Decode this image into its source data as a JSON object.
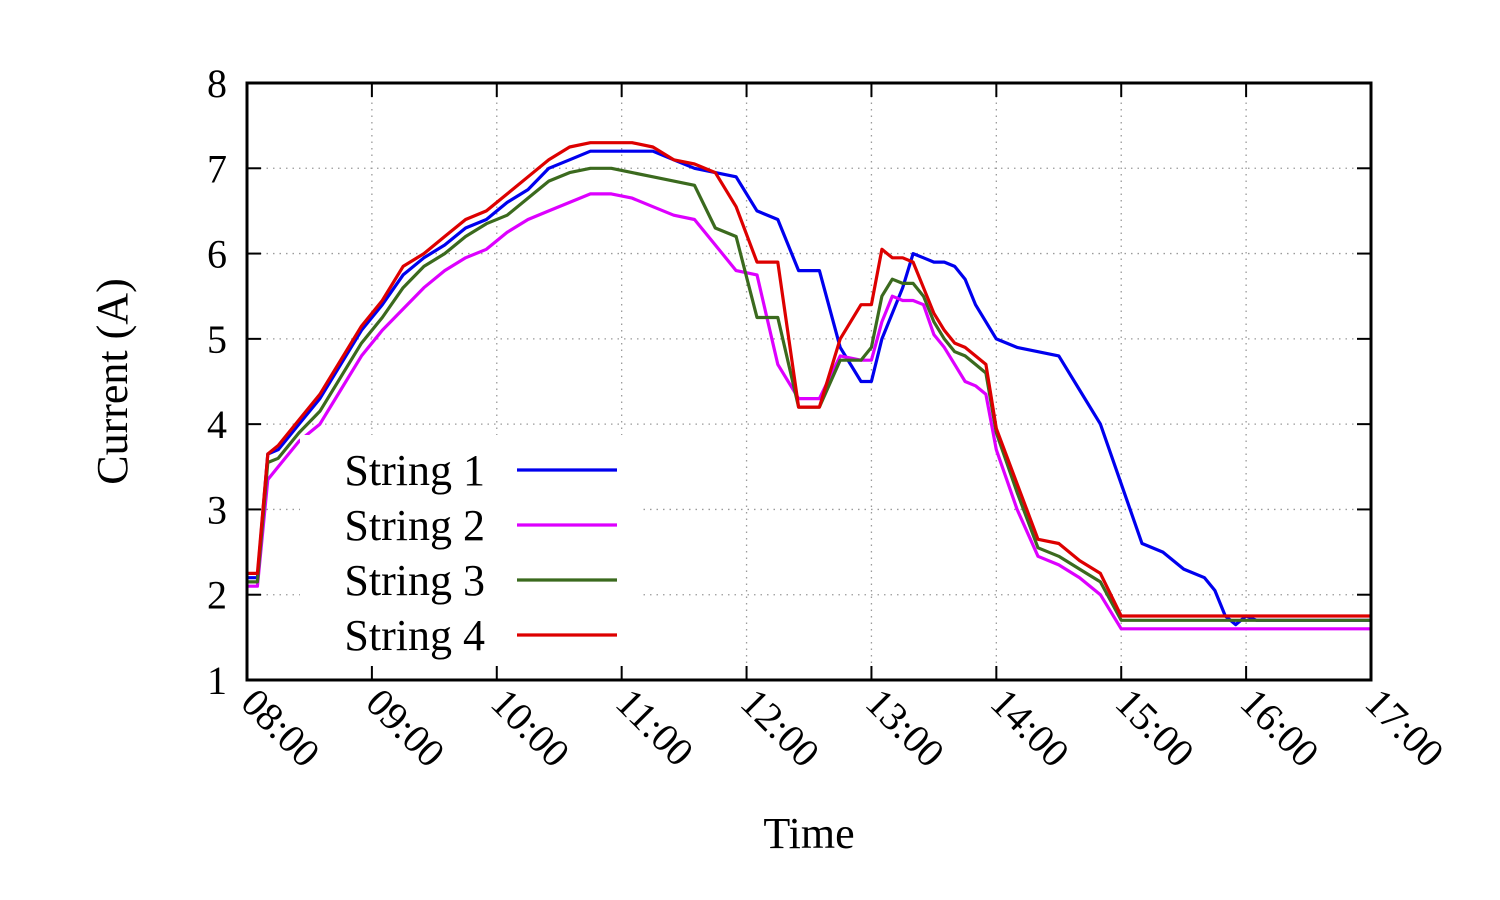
{
  "chart_data": {
    "type": "line",
    "xlabel": "Time",
    "ylabel": "Current (A)",
    "xlim": [
      "08:00",
      "17:00"
    ],
    "ylim": [
      1,
      8
    ],
    "x_ticks": [
      "08:00",
      "09:00",
      "10:00",
      "11:00",
      "12:00",
      "13:00",
      "14:00",
      "15:00",
      "16:00",
      "17:00"
    ],
    "y_ticks": [
      "1",
      "2",
      "3",
      "4",
      "5",
      "6",
      "7",
      "8"
    ],
    "grid": true,
    "legend_position": "bottom-left",
    "x": [
      "08:00",
      "08:05",
      "08:10",
      "08:15",
      "08:25",
      "08:35",
      "08:45",
      "08:55",
      "09:05",
      "09:15",
      "09:25",
      "09:35",
      "09:45",
      "09:55",
      "10:05",
      "10:15",
      "10:25",
      "10:35",
      "10:45",
      "10:55",
      "11:05",
      "11:15",
      "11:25",
      "11:35",
      "11:45",
      "11:55",
      "12:05",
      "12:15",
      "12:25",
      "12:35",
      "12:45",
      "12:55",
      "13:00",
      "13:05",
      "13:10",
      "13:15",
      "13:20",
      "13:25",
      "13:30",
      "13:35",
      "13:40",
      "13:45",
      "13:50",
      "13:55",
      "14:00",
      "14:10",
      "14:20",
      "14:30",
      "14:40",
      "14:50",
      "15:00",
      "15:10",
      "15:20",
      "15:30",
      "15:40",
      "15:45",
      "15:50",
      "15:55",
      "16:00",
      "16:05",
      "16:10",
      "16:20",
      "16:30",
      "16:40",
      "16:50",
      "16:55",
      "17:00"
    ],
    "series": [
      {
        "name": "String 1",
        "color": "#0000ee",
        "values": [
          2.2,
          2.2,
          3.65,
          3.7,
          4.0,
          4.3,
          4.7,
          5.1,
          5.4,
          5.75,
          5.95,
          6.1,
          6.3,
          6.4,
          6.6,
          6.75,
          7.0,
          7.1,
          7.2,
          7.2,
          7.2,
          7.2,
          7.1,
          7.0,
          6.95,
          6.9,
          6.5,
          6.4,
          5.8,
          5.8,
          4.9,
          4.5,
          4.5,
          5.0,
          5.3,
          5.6,
          6.0,
          5.95,
          5.9,
          5.9,
          5.85,
          5.7,
          5.4,
          5.2,
          5.0,
          4.9,
          4.85,
          4.8,
          4.4,
          4.0,
          3.3,
          2.6,
          2.5,
          2.3,
          2.2,
          2.05,
          1.75,
          1.65,
          1.75,
          1.7,
          1.7,
          1.7,
          1.7,
          1.7,
          1.7,
          1.7,
          1.7
        ]
      },
      {
        "name": "String 2",
        "color": "#dd00ff",
        "values": [
          2.1,
          2.1,
          3.35,
          3.5,
          3.8,
          4.0,
          4.4,
          4.8,
          5.1,
          5.35,
          5.6,
          5.8,
          5.95,
          6.05,
          6.25,
          6.4,
          6.5,
          6.6,
          6.7,
          6.7,
          6.65,
          6.55,
          6.45,
          6.4,
          6.1,
          5.8,
          5.75,
          4.7,
          4.3,
          4.3,
          4.8,
          4.75,
          4.75,
          5.2,
          5.5,
          5.45,
          5.45,
          5.4,
          5.05,
          4.9,
          4.7,
          4.5,
          4.45,
          4.35,
          3.7,
          3.0,
          2.45,
          2.35,
          2.2,
          2.0,
          1.6,
          1.6,
          1.6,
          1.6,
          1.6,
          1.6,
          1.6,
          1.6,
          1.6,
          1.6,
          1.6,
          1.6,
          1.6,
          1.6,
          1.6,
          1.6,
          1.6
        ]
      },
      {
        "name": "String 3",
        "color": "#3b6a1e",
        "values": [
          2.15,
          2.15,
          3.55,
          3.6,
          3.9,
          4.15,
          4.55,
          4.95,
          5.25,
          5.6,
          5.85,
          6.0,
          6.2,
          6.35,
          6.45,
          6.65,
          6.85,
          6.95,
          7.0,
          7.0,
          6.95,
          6.9,
          6.85,
          6.8,
          6.3,
          6.2,
          5.25,
          5.25,
          4.2,
          4.2,
          4.75,
          4.75,
          4.9,
          5.5,
          5.7,
          5.65,
          5.65,
          5.5,
          5.2,
          5.0,
          4.85,
          4.8,
          4.7,
          4.6,
          3.9,
          3.2,
          2.55,
          2.45,
          2.3,
          2.15,
          1.7,
          1.7,
          1.7,
          1.7,
          1.7,
          1.7,
          1.7,
          1.7,
          1.7,
          1.7,
          1.7,
          1.7,
          1.7,
          1.7,
          1.7,
          1.7,
          1.7
        ]
      },
      {
        "name": "String 4",
        "color": "#dd0000",
        "values": [
          2.25,
          2.25,
          3.65,
          3.75,
          4.05,
          4.35,
          4.75,
          5.15,
          5.45,
          5.85,
          6.0,
          6.2,
          6.4,
          6.5,
          6.7,
          6.9,
          7.1,
          7.25,
          7.3,
          7.3,
          7.3,
          7.25,
          7.1,
          7.05,
          6.95,
          6.55,
          5.9,
          5.9,
          4.2,
          4.2,
          5.0,
          5.4,
          5.4,
          6.05,
          5.95,
          5.95,
          5.9,
          5.6,
          5.3,
          5.1,
          4.95,
          4.9,
          4.8,
          4.7,
          3.95,
          3.3,
          2.65,
          2.6,
          2.4,
          2.25,
          1.75,
          1.75,
          1.75,
          1.75,
          1.75,
          1.75,
          1.75,
          1.75,
          1.75,
          1.75,
          1.75,
          1.75,
          1.75,
          1.75,
          1.75,
          1.75,
          1.75
        ]
      }
    ]
  }
}
